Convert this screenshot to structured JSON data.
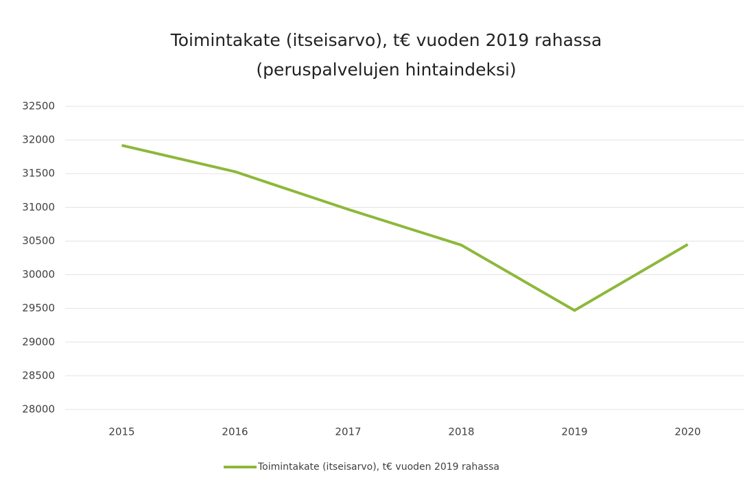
{
  "chart_data": {
    "type": "line",
    "title": "Toimintakate (itseisarvo), t€ vuoden 2019 rahassa",
    "subtitle": "(peruspalvelujen hintaindeksi)",
    "categories": [
      "2015",
      "2016",
      "2017",
      "2018",
      "2019",
      "2020"
    ],
    "series": [
      {
        "name": "Toimintakate (itseisarvo), t€ vuoden 2019 rahassa",
        "color": "#8db83a",
        "values": [
          31920,
          31530,
          30970,
          30440,
          29470,
          30450
        ]
      }
    ],
    "ylim": [
      28000,
      32500
    ],
    "yticks": [
      28000,
      28500,
      29000,
      29500,
      30000,
      30500,
      31000,
      31500,
      32000,
      32500
    ],
    "grid": true,
    "legend": "bottom"
  }
}
